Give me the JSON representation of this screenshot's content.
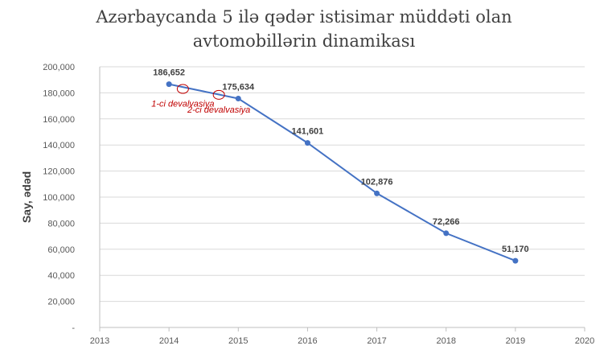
{
  "chart_data": {
    "type": "scatter",
    "title_lines": [
      "Azərbaycanda 5 ilə qədər istisimar müddəti olan",
      "avtomobillərin dinamikası"
    ],
    "xlabel": "",
    "ylabel": "Say, ədəd",
    "xlim": [
      2013,
      2020
    ],
    "ylim": [
      0,
      200000
    ],
    "x_ticks": [
      "2013",
      "2014",
      "2015",
      "2016",
      "2017",
      "2018",
      "2019",
      "2020"
    ],
    "y_ticks": [
      "-",
      "20,000",
      "40,000",
      "60,000",
      "80,000",
      "100,000",
      "120,000",
      "140,000",
      "160,000",
      "180,000",
      "200,000"
    ],
    "gridlines": "horizontal",
    "series": [
      {
        "color": "#4472c4",
        "x": [
          2014,
          2015,
          2016,
          2017,
          2018,
          2019
        ],
        "y": [
          186652,
          175634,
          141601,
          102876,
          72266,
          51170
        ],
        "labels": [
          "186,652",
          "175,634",
          "141,601",
          "102,876",
          "72,266",
          "51,170"
        ]
      }
    ],
    "annotations": [
      {
        "text": "1-ci devalvasiya",
        "x": 2014.2,
        "y": 183000,
        "color": "#c00000"
      },
      {
        "text": "2-ci devalvasiya",
        "x": 2014.72,
        "y": 178500,
        "color": "#c00000"
      }
    ]
  }
}
